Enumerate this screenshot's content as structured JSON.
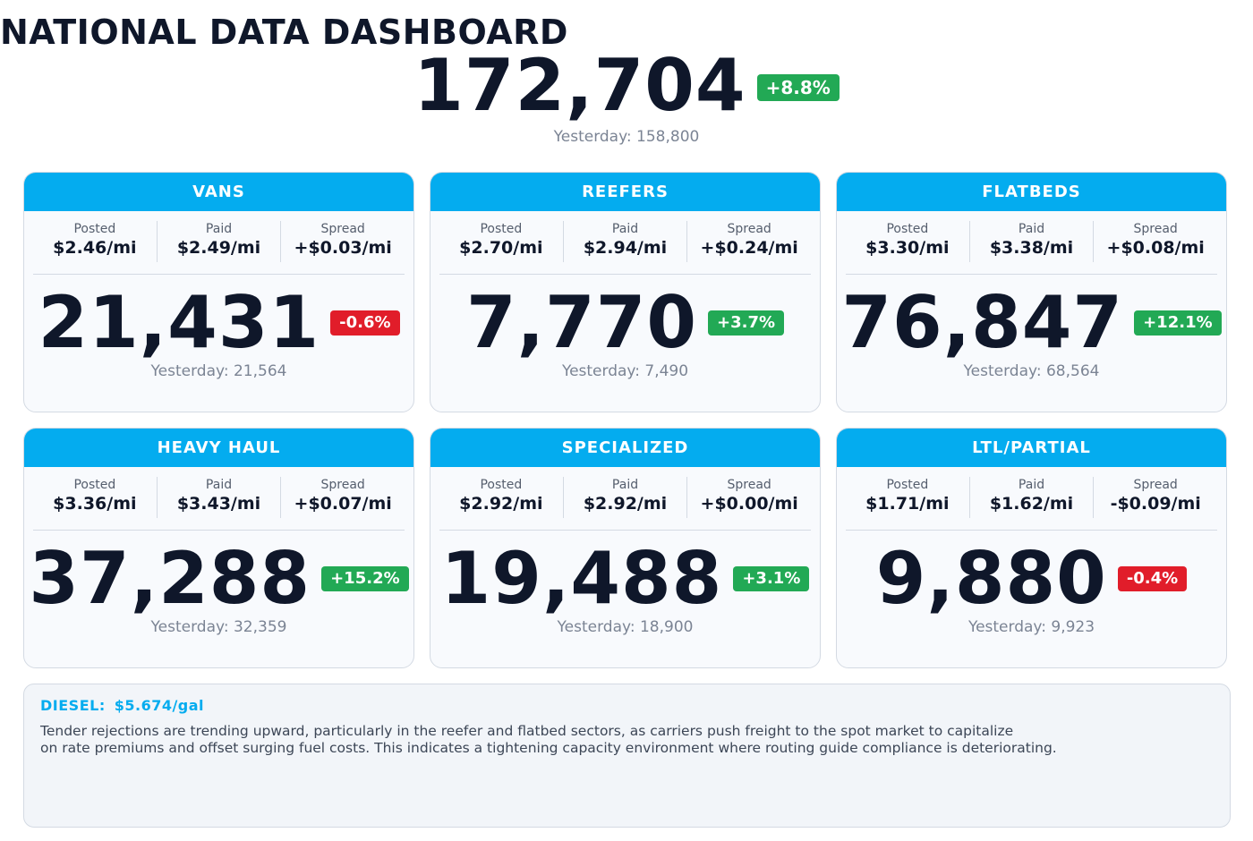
{
  "header": {
    "title": "NATIONAL DATA DASHBOARD",
    "total": "172,704",
    "change": "+8.8%",
    "change_dir": "up",
    "yesterday": "Yesterday: 158,800"
  },
  "labels": {
    "posted": "Posted",
    "paid": "Paid",
    "spread": "Spread"
  },
  "cards": [
    {
      "name": "VANS",
      "posted": "$2.46/mi",
      "paid": "$2.49/mi",
      "spread": "+$0.03/mi",
      "count": "21,431",
      "change": "-0.6%",
      "change_dir": "down",
      "yesterday": "Yesterday: 21,564"
    },
    {
      "name": "REEFERS",
      "posted": "$2.70/mi",
      "paid": "$2.94/mi",
      "spread": "+$0.24/mi",
      "count": "7,770",
      "change": "+3.7%",
      "change_dir": "up",
      "yesterday": "Yesterday: 7,490"
    },
    {
      "name": "FLATBEDS",
      "posted": "$3.30/mi",
      "paid": "$3.38/mi",
      "spread": "+$0.08/mi",
      "count": "76,847",
      "change": "+12.1%",
      "change_dir": "up",
      "yesterday": "Yesterday: 68,564"
    },
    {
      "name": "HEAVY HAUL",
      "posted": "$3.36/mi",
      "paid": "$3.43/mi",
      "spread": "+$0.07/mi",
      "count": "37,288",
      "change": "+15.2%",
      "change_dir": "up",
      "yesterday": "Yesterday: 32,359"
    },
    {
      "name": "SPECIALIZED",
      "posted": "$2.92/mi",
      "paid": "$2.92/mi",
      "spread": "+$0.00/mi",
      "count": "19,488",
      "change": "+3.1%",
      "change_dir": "up",
      "yesterday": "Yesterday: 18,900"
    },
    {
      "name": "LTL/PARTIAL",
      "posted": "$1.71/mi",
      "paid": "$1.62/mi",
      "spread": "-$0.09/mi",
      "count": "9,880",
      "change": "-0.4%",
      "change_dir": "down",
      "yesterday": "Yesterday: 9,923"
    }
  ],
  "note": {
    "diesel_label": "DIESEL:",
    "diesel_value": "$5.674/gal",
    "line1": "Tender rejections are trending upward, particularly in the reefer and flatbed sectors, as carriers push freight to the spot market to capitalize",
    "line2": "on rate premiums and offset surging fuel costs. This indicates a tightening capacity environment where routing guide compliance is deteriorating."
  },
  "colors": {
    "accent": "#04acef",
    "up": "#22a955",
    "down": "#e11d2a",
    "text": "#0f172a"
  }
}
